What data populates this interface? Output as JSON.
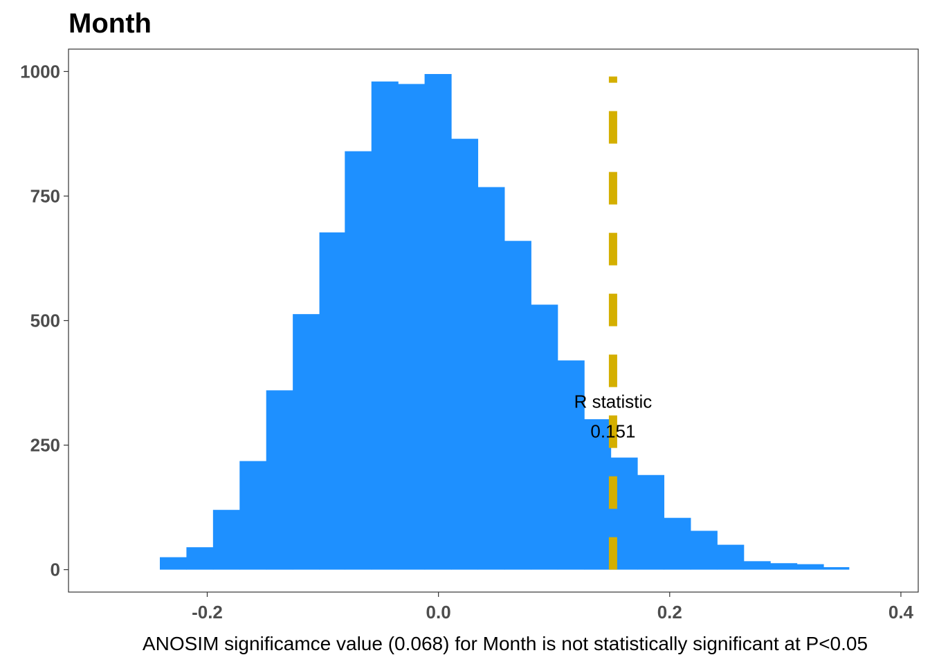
{
  "chart_data": {
    "type": "bar",
    "subtype": "histogram",
    "title": "Month",
    "xlabel": "ANOSIM significamce value (0.068) for Month is not statistically significant at P<0.05",
    "ylabel": "",
    "bin_width": 0.0229,
    "bins": [
      {
        "x0": -0.241,
        "x1": -0.218,
        "count": 25
      },
      {
        "x0": -0.218,
        "x1": -0.195,
        "count": 45
      },
      {
        "x0": -0.195,
        "x1": -0.172,
        "count": 120
      },
      {
        "x0": -0.172,
        "x1": -0.149,
        "count": 218
      },
      {
        "x0": -0.149,
        "x1": -0.126,
        "count": 360
      },
      {
        "x0": -0.126,
        "x1": -0.103,
        "count": 513
      },
      {
        "x0": -0.103,
        "x1": -0.081,
        "count": 677
      },
      {
        "x0": -0.081,
        "x1": -0.058,
        "count": 840
      },
      {
        "x0": -0.058,
        "x1": -0.035,
        "count": 980
      },
      {
        "x0": -0.035,
        "x1": -0.012,
        "count": 975
      },
      {
        "x0": -0.012,
        "x1": 0.011,
        "count": 995
      },
      {
        "x0": 0.011,
        "x1": 0.034,
        "count": 865
      },
      {
        "x0": 0.034,
        "x1": 0.057,
        "count": 768
      },
      {
        "x0": 0.057,
        "x1": 0.08,
        "count": 660
      },
      {
        "x0": 0.08,
        "x1": 0.103,
        "count": 532
      },
      {
        "x0": 0.103,
        "x1": 0.126,
        "count": 420
      },
      {
        "x0": 0.126,
        "x1": 0.149,
        "count": 302
      },
      {
        "x0": 0.149,
        "x1": 0.172,
        "count": 225
      },
      {
        "x0": 0.172,
        "x1": 0.195,
        "count": 190
      },
      {
        "x0": 0.195,
        "x1": 0.218,
        "count": 104
      },
      {
        "x0": 0.218,
        "x1": 0.241,
        "count": 78
      },
      {
        "x0": 0.241,
        "x1": 0.264,
        "count": 50
      },
      {
        "x0": 0.264,
        "x1": 0.287,
        "count": 17
      },
      {
        "x0": 0.287,
        "x1": 0.31,
        "count": 13
      },
      {
        "x0": 0.31,
        "x1": 0.333,
        "count": 11
      },
      {
        "x0": 0.333,
        "x1": 0.355,
        "count": 5
      }
    ],
    "xlim": [
      -0.32,
      0.415
    ],
    "ylim": [
      -45,
      1045
    ],
    "x_ticks": [
      -0.2,
      0.0,
      0.2,
      0.4
    ],
    "x_tick_labels": [
      "-0.2",
      "0.0",
      "0.2",
      "0.4"
    ],
    "y_ticks": [
      0,
      250,
      500,
      750,
      1000
    ],
    "y_tick_labels": [
      "0",
      "250",
      "500",
      "750",
      "1000"
    ],
    "grid": false,
    "bar_color": "#1E90FF",
    "reference_line": {
      "x": 0.151,
      "y_max": 990,
      "style": "dashed",
      "color": "#D4AF00"
    },
    "annotation": {
      "line1": "R statistic",
      "line2": "0.151",
      "x": 0.151,
      "y1": 325,
      "y2": 265
    }
  }
}
